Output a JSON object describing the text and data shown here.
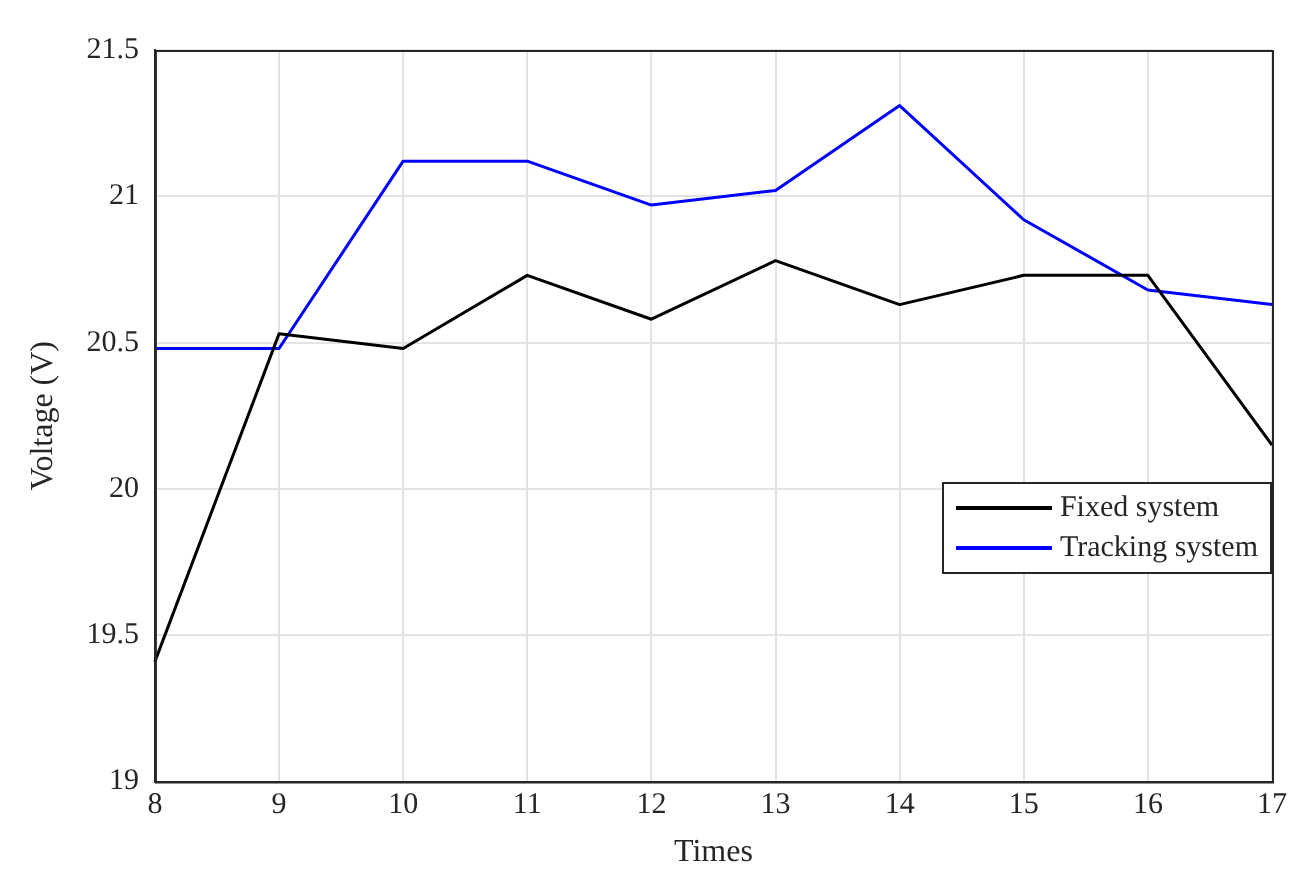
{
  "chart_data": {
    "type": "line",
    "xlabel": "Times",
    "ylabel": "Voltage (V)",
    "x": [
      8,
      9,
      10,
      11,
      12,
      13,
      14,
      15,
      16,
      17
    ],
    "xlim": [
      8,
      17
    ],
    "xticks": [
      8,
      9,
      10,
      11,
      12,
      13,
      14,
      15,
      16,
      17
    ],
    "ylim": [
      19,
      21.5
    ],
    "yticks": [
      19,
      19.5,
      20,
      20.5,
      21,
      21.5
    ],
    "grid": true,
    "legend": "bottom right",
    "marker": "none",
    "line_style": "solid",
    "series": [
      {
        "name": "Fixed system",
        "color": "#000000",
        "values": [
          19.41,
          20.53,
          20.48,
          20.73,
          20.58,
          20.78,
          20.63,
          20.73,
          20.73,
          20.15
        ]
      },
      {
        "name": "Tracking system",
        "color": "#0000ff",
        "values": [
          20.48,
          20.48,
          21.12,
          21.12,
          20.97,
          21.02,
          21.31,
          20.92,
          20.68,
          20.63
        ]
      }
    ]
  }
}
